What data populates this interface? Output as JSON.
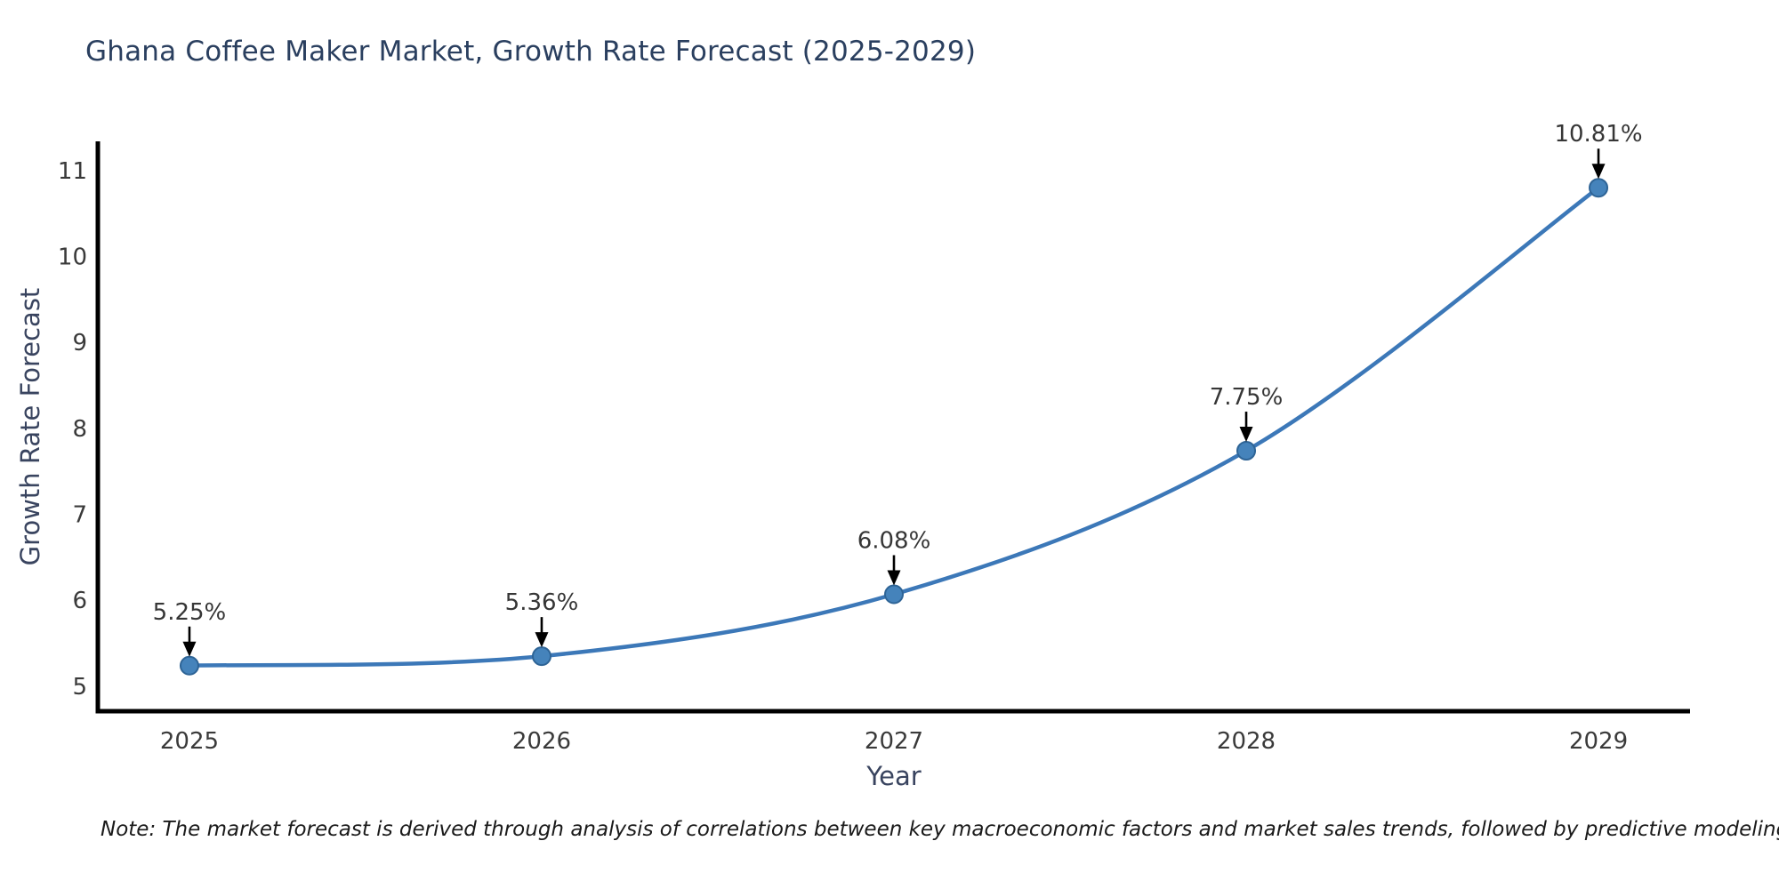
{
  "note": "Note: The market forecast is derived through analysis of correlations between key macroeconomic factors and market sales trends, followed by predictive modeling to project future sales",
  "chart_data": {
    "type": "line",
    "title": "Ghana Coffee Maker Market, Growth Rate Forecast (2025-2029)",
    "xlabel": "Year",
    "ylabel": "Growth Rate Forecast",
    "x": [
      2025,
      2026,
      2027,
      2028,
      2029
    ],
    "values": [
      5.25,
      5.36,
      6.08,
      7.75,
      10.81
    ],
    "point_labels": [
      "5.25%",
      "5.36%",
      "6.08%",
      "7.75%",
      "10.81%"
    ],
    "xticks": [
      "2025",
      "2026",
      "2027",
      "2028",
      "2029"
    ],
    "yticks": [
      5,
      6,
      7,
      8,
      9,
      10,
      11
    ],
    "xlim": [
      2024.74,
      2029.26
    ],
    "ylim": [
      4.72,
      11.35
    ],
    "grid": false,
    "legend": "none",
    "smooth": true,
    "colors": {
      "line": "#3c78b8",
      "marker_fill": "#4583bb",
      "marker_edge": "#2e6496",
      "annotation_text": "#363636",
      "annotation_arrow": "#000000",
      "tick_label": "#3a3a3a",
      "spine": "#000000"
    }
  }
}
